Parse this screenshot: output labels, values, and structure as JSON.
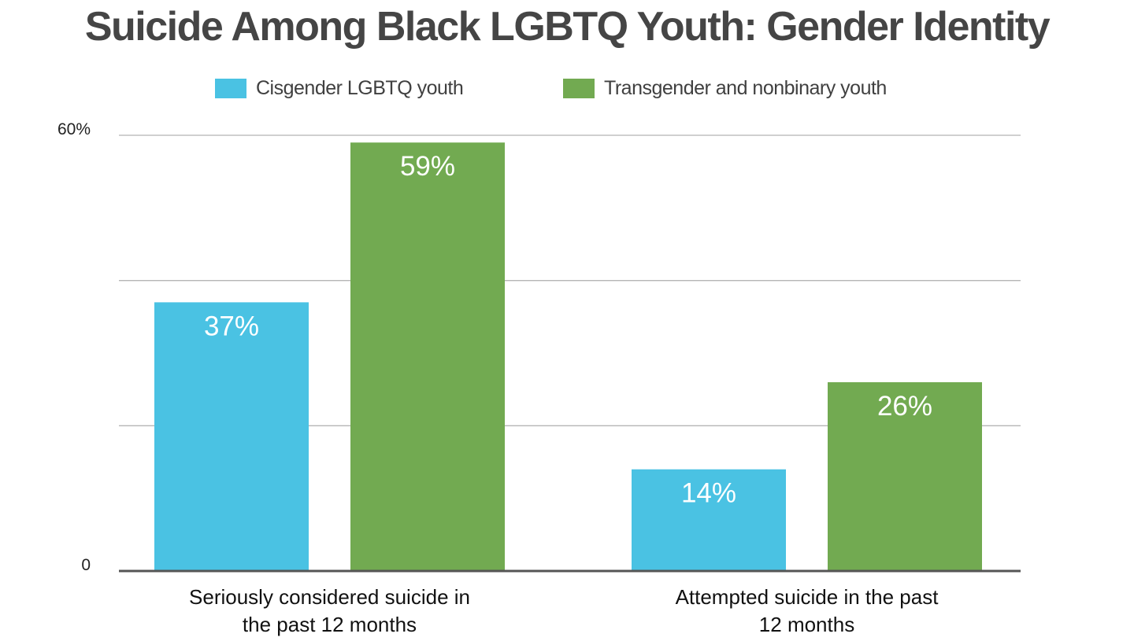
{
  "chart_data": {
    "type": "bar",
    "title": "Suicide Among Black LGBTQ Youth: Gender Identity",
    "categories": [
      [
        "Seriously considered suicide in",
        "the past 12 months"
      ],
      [
        "Attempted suicide in the past",
        "12 months"
      ]
    ],
    "series": [
      {
        "name": "Cisgender LGBTQ youth",
        "color": "#4AC2E3",
        "values": [
          37,
          14
        ],
        "labels": [
          "37%",
          "14%"
        ]
      },
      {
        "name": "Transgender and nonbinary youth",
        "color": "#72AA51",
        "values": [
          59,
          26
        ],
        "labels": [
          "59%",
          "26%"
        ]
      }
    ],
    "ylim": [
      0,
      60
    ],
    "yticks": [
      0,
      20,
      40,
      60
    ],
    "ytick_labels": [
      "0",
      "",
      "",
      "60%"
    ],
    "grid": true,
    "legend": "top-center",
    "xlabel": "",
    "ylabel": ""
  }
}
